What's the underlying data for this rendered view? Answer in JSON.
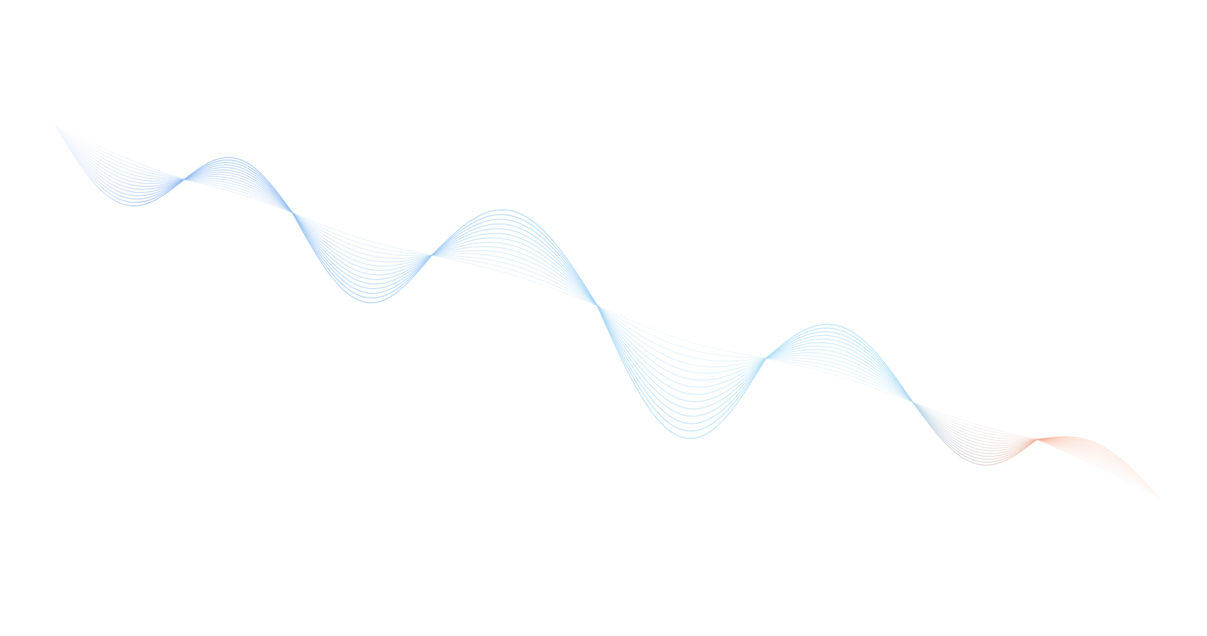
{
  "background": "#ffffff",
  "wave": {
    "line_count": 14,
    "colors": {
      "start": "#8fb8f2",
      "middle": "#a9dcf7",
      "end": "#f6ab8e"
    }
  }
}
